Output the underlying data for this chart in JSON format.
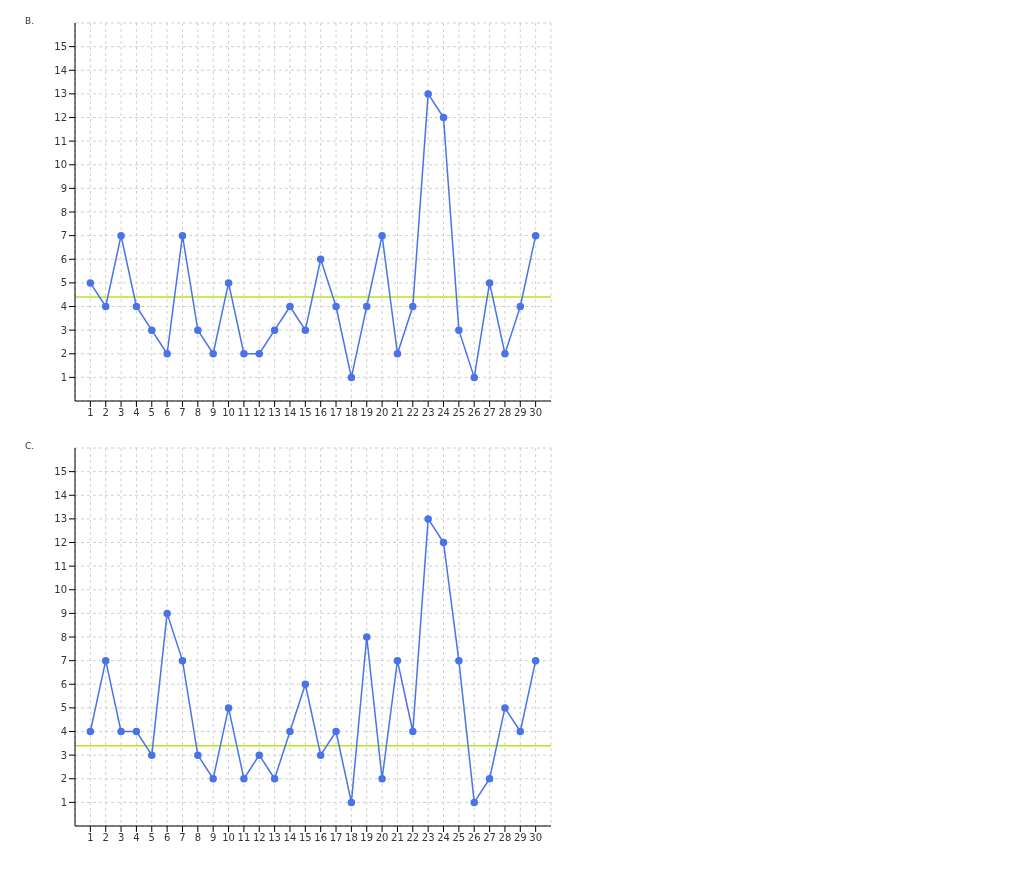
{
  "chart_data": [
    {
      "type": "line",
      "title": "B.",
      "x": [
        1,
        2,
        3,
        4,
        5,
        6,
        7,
        8,
        9,
        10,
        11,
        12,
        13,
        14,
        15,
        16,
        17,
        18,
        19,
        20,
        21,
        22,
        23,
        24,
        25,
        26,
        27,
        28,
        29,
        30
      ],
      "series": [
        {
          "color": "#4a73e8",
          "values": [
            5,
            4,
            7,
            4,
            3,
            2,
            7,
            3,
            2,
            5,
            2,
            2,
            3,
            4,
            3,
            6,
            4,
            1,
            4,
            7,
            2,
            4,
            13,
            12,
            3,
            1,
            5,
            2,
            4,
            7
          ]
        }
      ],
      "xlim": [
        0,
        31
      ],
      "xticks": [
        1,
        2,
        3,
        4,
        5,
        6,
        7,
        8,
        9,
        10,
        11,
        12,
        13,
        14,
        15,
        16,
        17,
        18,
        19,
        20,
        21,
        22,
        23,
        24,
        25,
        26,
        27,
        28,
        29,
        30
      ],
      "ylim": [
        0,
        16
      ],
      "yticks": [
        1,
        2,
        3,
        4,
        5,
        6,
        7,
        8,
        9,
        10,
        11,
        12,
        13,
        14,
        15
      ],
      "ref_lines": [
        {
          "axis": "y",
          "value": 4.4,
          "color": "#b5e61d"
        }
      ],
      "grid": true,
      "marker": "circle",
      "line_style": "solid",
      "legend": false
    },
    {
      "type": "line",
      "title": "C.",
      "x": [
        1,
        2,
        3,
        4,
        5,
        6,
        7,
        8,
        9,
        10,
        11,
        12,
        13,
        14,
        15,
        16,
        17,
        18,
        19,
        20,
        21,
        22,
        23,
        24,
        25,
        26,
        27,
        28,
        29,
        30
      ],
      "series": [
        {
          "color": "#4a73e8",
          "values": [
            4,
            7,
            4,
            4,
            3,
            9,
            7,
            3,
            2,
            5,
            2,
            3,
            2,
            4,
            6,
            3,
            4,
            1,
            8,
            2,
            7,
            4,
            13,
            12,
            7,
            1,
            2,
            5,
            4,
            7
          ]
        }
      ],
      "xlim": [
        0,
        31
      ],
      "xticks": [
        1,
        2,
        3,
        4,
        5,
        6,
        7,
        8,
        9,
        10,
        11,
        12,
        13,
        14,
        15,
        16,
        17,
        18,
        19,
        20,
        21,
        22,
        23,
        24,
        25,
        26,
        27,
        28,
        29,
        30
      ],
      "ylim": [
        0,
        16
      ],
      "yticks": [
        1,
        2,
        3,
        4,
        5,
        6,
        7,
        8,
        9,
        10,
        11,
        12,
        13,
        14,
        15
      ],
      "ref_lines": [
        {
          "axis": "y",
          "value": 3.4,
          "color": "#b5e61d"
        }
      ],
      "grid": true,
      "marker": "circle",
      "line_style": "solid",
      "legend": false
    }
  ]
}
